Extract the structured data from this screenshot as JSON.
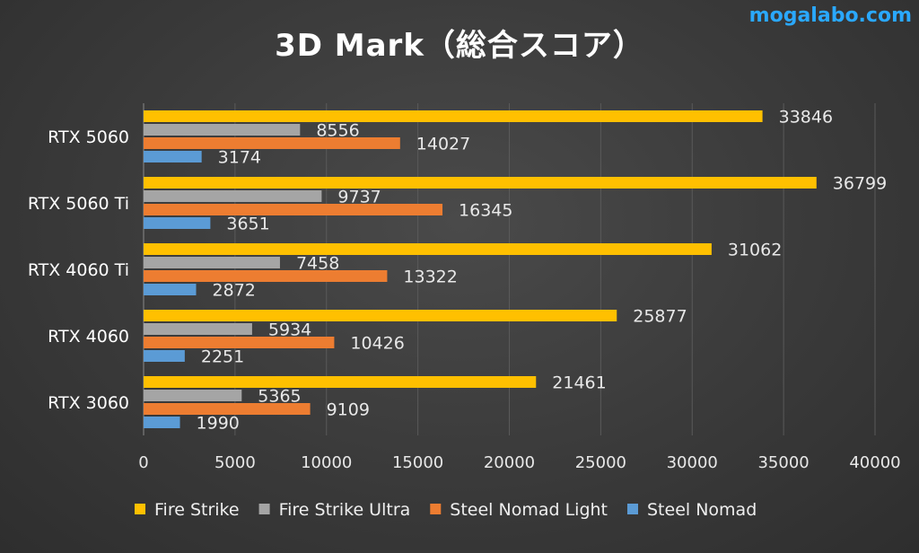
{
  "watermark": "mogalabo.com",
  "chart_data": {
    "type": "bar",
    "orientation": "horizontal",
    "title": "3D Mark（総合スコア）",
    "categories": [
      "RTX 5060",
      "RTX 5060 Ti",
      "RTX 4060 Ti",
      "RTX 4060",
      "RTX 3060"
    ],
    "series": [
      {
        "name": "Fire Strike",
        "color": "#ffc000",
        "values": [
          33846,
          36799,
          31062,
          25877,
          21461
        ]
      },
      {
        "name": "Fire Strike Ultra",
        "color": "#a5a5a5",
        "values": [
          8556,
          9737,
          7458,
          5934,
          5365
        ]
      },
      {
        "name": "Steel Nomad Light",
        "color": "#ed7d31",
        "values": [
          14027,
          16345,
          13322,
          10426,
          9109
        ]
      },
      {
        "name": "Steel Nomad",
        "color": "#5b9bd5",
        "values": [
          3174,
          3651,
          2872,
          2251,
          1990
        ]
      }
    ],
    "xlim": [
      0,
      40000
    ],
    "xticks": [
      0,
      5000,
      10000,
      15000,
      20000,
      25000,
      30000,
      35000,
      40000
    ],
    "grid": true,
    "legend": "bottom",
    "data_labels": true
  }
}
